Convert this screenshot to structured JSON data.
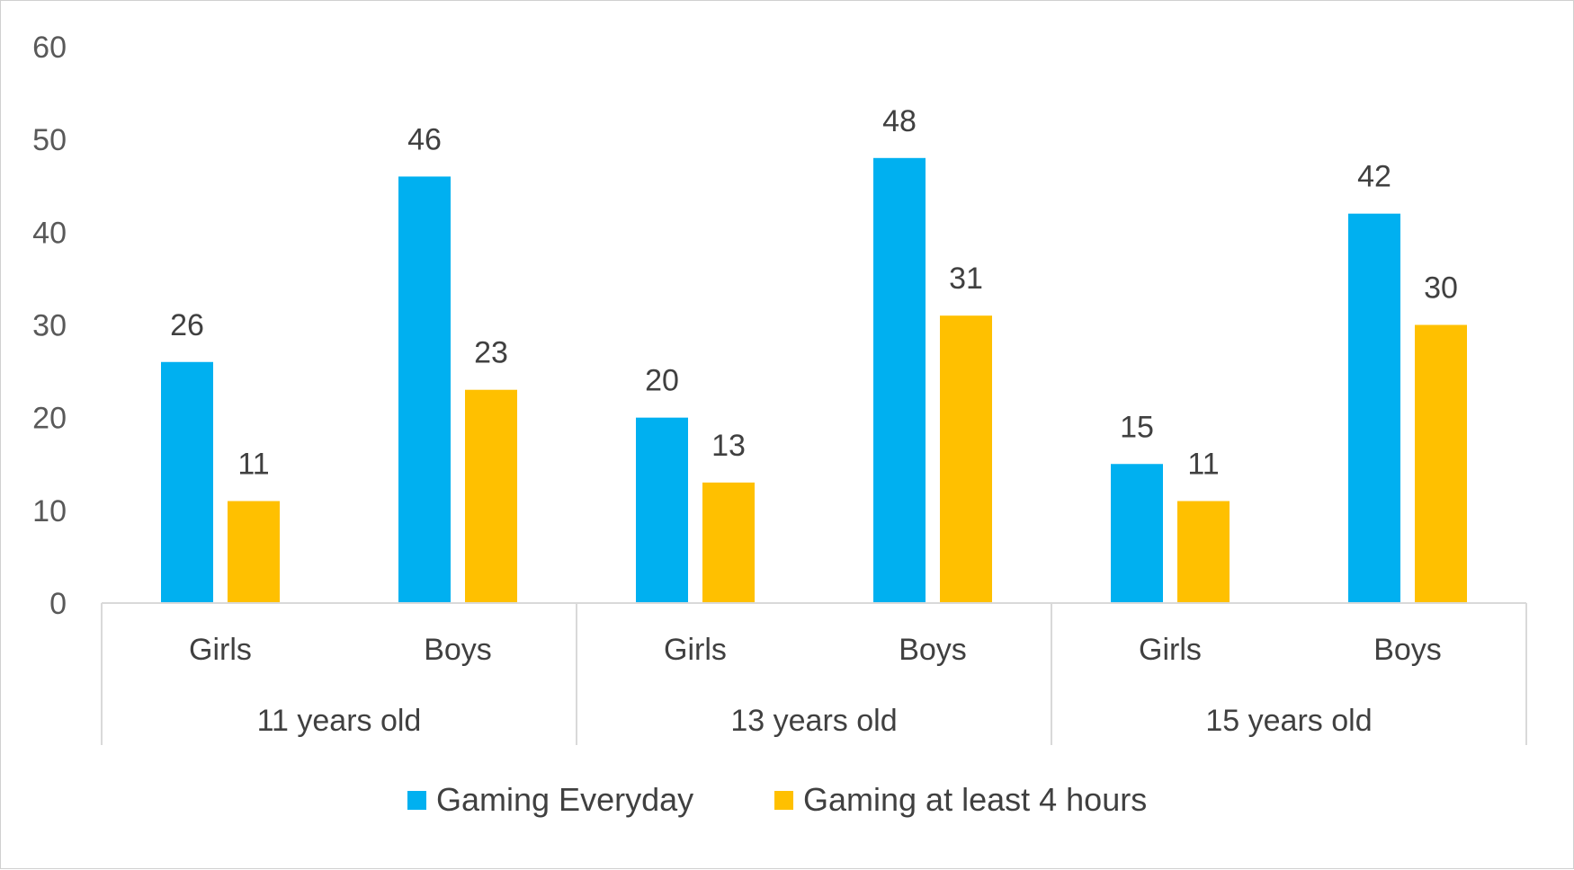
{
  "chart_data": {
    "type": "bar",
    "groups": [
      {
        "label": "11 years old",
        "categories": [
          "Girls",
          "Boys"
        ]
      },
      {
        "label": "13 years old",
        "categories": [
          "Girls",
          "Boys"
        ]
      },
      {
        "label": "15 years old",
        "categories": [
          "Girls",
          "Boys"
        ]
      }
    ],
    "series": [
      {
        "name": "Gaming Everyday",
        "color": "#00B0F0",
        "values": [
          26,
          46,
          20,
          48,
          15,
          42
        ]
      },
      {
        "name": "Gaming at least 4 hours",
        "color": "#FFC000",
        "values": [
          11,
          23,
          13,
          31,
          11,
          30
        ]
      }
    ],
    "ylim": [
      0,
      60
    ],
    "yticks": [
      0,
      10,
      20,
      30,
      40,
      50,
      60
    ],
    "grid": false,
    "legend_position": "bottom",
    "data_labels": true
  }
}
